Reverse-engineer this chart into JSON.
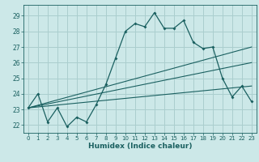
{
  "xlabel": "Humidex (Indice chaleur)",
  "background_color": "#cce8e8",
  "grid_color": "#aacece",
  "line_color": "#1a6060",
  "xlim": [
    -0.5,
    23.5
  ],
  "ylim": [
    21.5,
    29.7
  ],
  "yticks": [
    22,
    23,
    24,
    25,
    26,
    27,
    28,
    29
  ],
  "xticks": [
    0,
    1,
    2,
    3,
    4,
    5,
    6,
    7,
    8,
    9,
    10,
    11,
    12,
    13,
    14,
    15,
    16,
    17,
    18,
    19,
    20,
    21,
    22,
    23
  ],
  "series1_x": [
    0,
    1,
    2,
    3,
    4,
    5,
    6,
    7,
    8,
    9,
    10,
    11,
    12,
    13,
    14,
    15,
    16,
    17,
    18,
    19,
    20,
    21,
    22,
    23
  ],
  "series1_y": [
    23.1,
    24.0,
    22.2,
    23.1,
    21.9,
    22.5,
    22.2,
    23.3,
    24.6,
    26.3,
    28.0,
    28.5,
    28.3,
    29.2,
    28.2,
    28.2,
    28.7,
    27.3,
    26.9,
    27.0,
    25.0,
    23.8,
    24.5,
    23.5
  ],
  "series2_x": [
    0,
    23
  ],
  "series2_y": [
    23.1,
    27.0
  ],
  "series3_x": [
    0,
    23
  ],
  "series3_y": [
    23.1,
    24.5
  ],
  "series4_x": [
    0,
    23
  ],
  "series4_y": [
    23.1,
    26.0
  ]
}
